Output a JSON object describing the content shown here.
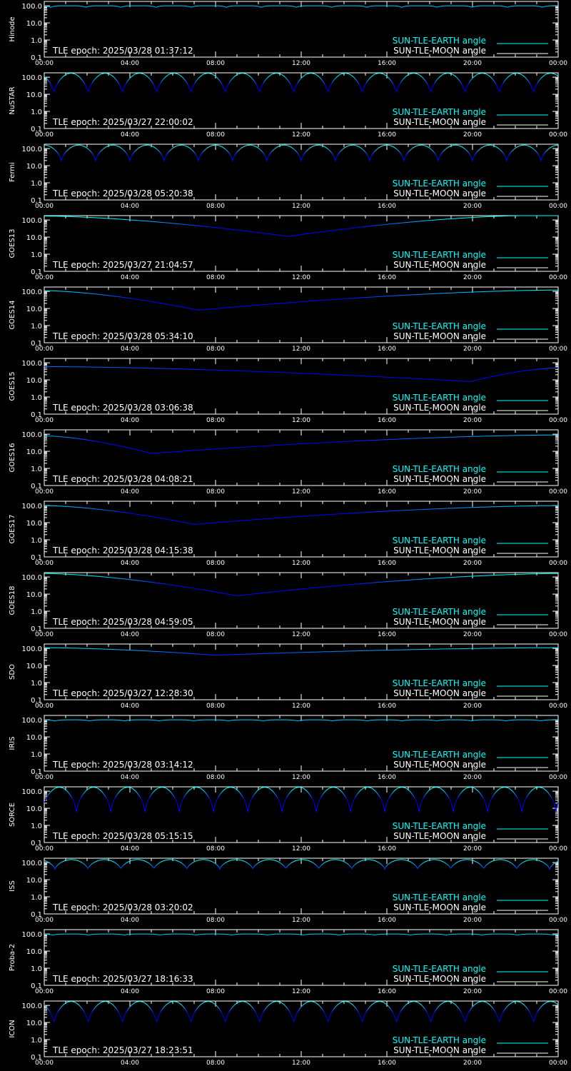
{
  "colors": {
    "background": "#000000",
    "axes": "#ffffff",
    "sun_tle_earth": "#00ffff",
    "sun_tle_moon": "#ffffff",
    "curve_low": "#0000ff",
    "curve_high": "#00ffff"
  },
  "legend": {
    "earth_label": "SUN-TLE-EARTH angle",
    "moon_label": "SUN-TLE-MOON angle",
    "placement": "bottom-right"
  },
  "axes": {
    "xticks": [
      "00:00",
      "04:00",
      "08:00",
      "12:00",
      "16:00",
      "20:00",
      "00:00"
    ],
    "yticks": [
      "100.0",
      "10.0",
      "1.0",
      "0.1"
    ],
    "ylim": [
      0.1,
      180
    ],
    "yscale": "log",
    "xlim_hours": [
      0,
      24
    ]
  },
  "chart_data": [
    {
      "type": "line",
      "ylabel": "Hinode",
      "epoch_text": "TLE epoch: 2025/03/28 01:37:12",
      "series": [
        {
          "kind": "periodic",
          "period_h": 1.64,
          "min": 80,
          "max": 100,
          "phase_h": 0.3,
          "width_h": 0.9
        }
      ]
    },
    {
      "type": "line",
      "ylabel": "NuSTAR",
      "epoch_text": "TLE epoch: 2025/03/27 22:00:02",
      "series": [
        {
          "kind": "periodic",
          "period_h": 1.6,
          "min": 10,
          "max": 170,
          "phase_h": 0.45,
          "width_h": 1.6
        }
      ]
    },
    {
      "type": "line",
      "ylabel": "Fermi",
      "epoch_text": "TLE epoch: 2025/03/28 05:20:38",
      "series": [
        {
          "kind": "periodic",
          "period_h": 1.6,
          "min": 18,
          "max": 160,
          "phase_h": 0.8,
          "width_h": 1.6
        }
      ]
    },
    {
      "type": "line",
      "ylabel": "GOES13",
      "epoch_text": "TLE epoch: 2025/03/27 21:04:57",
      "series": [
        {
          "kind": "dip",
          "start_val": 170,
          "min_h": 11.4,
          "min_val": 11,
          "end_val": 180,
          "end_h": 22.4
        }
      ]
    },
    {
      "type": "line",
      "ylabel": "GOES14",
      "epoch_text": "TLE epoch: 2025/03/28 05:34:10",
      "series": [
        {
          "kind": "dip",
          "start_val": 110,
          "min_h": 7.2,
          "min_val": 8,
          "end_val": 120,
          "end_h": 24
        }
      ]
    },
    {
      "type": "line",
      "ylabel": "GOES15",
      "epoch_text": "TLE epoch: 2025/03/28 03:06:38",
      "series": [
        {
          "kind": "dip",
          "start_val": 60,
          "min_h": 19.9,
          "min_val": 8,
          "end_val": 50,
          "end_h": 24
        }
      ]
    },
    {
      "type": "line",
      "ylabel": "GOES16",
      "epoch_text": "TLE epoch: 2025/03/28 04:08:21",
      "series": [
        {
          "kind": "dip",
          "start_val": 80,
          "min_h": 5.0,
          "min_val": 7.5,
          "end_val": 90,
          "end_h": 24
        }
      ]
    },
    {
      "type": "line",
      "ylabel": "GOES17",
      "epoch_text": "TLE epoch: 2025/03/28 04:15:38",
      "series": [
        {
          "kind": "dip",
          "start_val": 100,
          "min_h": 7.0,
          "min_val": 8,
          "end_val": 100,
          "end_h": 24
        }
      ]
    },
    {
      "type": "line",
      "ylabel": "GOES18",
      "epoch_text": "TLE epoch: 2025/03/28 04:59:05",
      "series": [
        {
          "kind": "dip",
          "start_val": 160,
          "min_h": 9.0,
          "min_val": 8,
          "end_val": 160,
          "end_h": 24
        }
      ]
    },
    {
      "type": "line",
      "ylabel": "SDO",
      "epoch_text": "TLE epoch: 2025/03/27 12:28:30",
      "series": [
        {
          "kind": "dip",
          "start_val": 110,
          "min_h": 8.0,
          "min_val": 40,
          "end_val": 110,
          "end_h": 24
        }
      ]
    },
    {
      "type": "line",
      "ylabel": "IRIS",
      "epoch_text": "TLE epoch: 2025/03/28 03:14:12",
      "series": [
        {
          "kind": "periodic",
          "period_h": 1.62,
          "min": 85,
          "max": 100,
          "phase_h": 0.5,
          "width_h": 1.2
        }
      ]
    },
    {
      "type": "line",
      "ylabel": "SORCE",
      "epoch_text": "TLE epoch: 2025/03/28 05:15:15",
      "series": [
        {
          "kind": "periodic",
          "period_h": 1.6,
          "min": 6,
          "max": 170,
          "phase_h": 1.5,
          "width_h": 1.6
        }
      ]
    },
    {
      "type": "line",
      "ylabel": "ISS",
      "epoch_text": "TLE epoch: 2025/03/28 03:20:02",
      "series": [
        {
          "kind": "periodic",
          "period_h": 1.54,
          "min": 40,
          "max": 150,
          "phase_h": 0.5,
          "width_h": 1.54
        }
      ]
    },
    {
      "type": "line",
      "ylabel": "Proba-2",
      "epoch_text": "TLE epoch: 2025/03/27 18:16:33",
      "series": [
        {
          "kind": "periodic",
          "period_h": 1.67,
          "min": 85,
          "max": 100,
          "phase_h": 0.4,
          "width_h": 1.2
        }
      ]
    },
    {
      "type": "line",
      "ylabel": "ICON",
      "epoch_text": "TLE epoch: 2025/03/27 18:23:51",
      "series": [
        {
          "kind": "periodic",
          "period_h": 1.6,
          "min": 8,
          "max": 170,
          "phase_h": 0.45,
          "width_h": 1.6
        }
      ]
    }
  ]
}
